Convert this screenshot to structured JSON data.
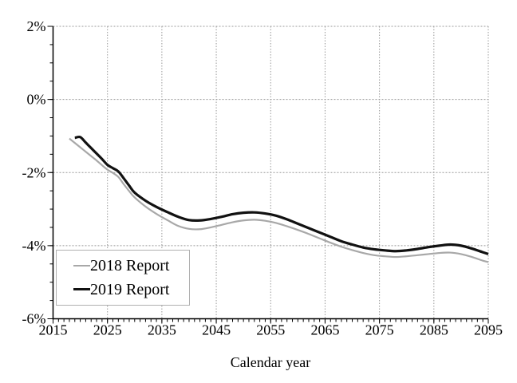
{
  "colors": {
    "background": "#ffffff",
    "axis": "#000000",
    "grid": "#999999",
    "text": "#000000",
    "legend_border": "#b0b0b0"
  },
  "chart_data": {
    "type": "line",
    "title": "",
    "xlabel": "Calendar year",
    "ylabel": "",
    "x_range": [
      2015,
      2095
    ],
    "y_range": [
      -6,
      2
    ],
    "x_major_ticks": [
      2015,
      2025,
      2035,
      2045,
      2055,
      2065,
      2075,
      2085,
      2095
    ],
    "x_tick_labels": [
      "2015",
      "2025",
      "2035",
      "2045",
      "2055",
      "2065",
      "2075",
      "2085",
      "2095"
    ],
    "x_minor_tick_step": 1,
    "y_major_ticks": [
      2,
      0,
      -2,
      -4,
      -6
    ],
    "y_tick_labels": [
      "2%",
      "0%",
      "-2%",
      "-4%",
      "-6%"
    ],
    "y_minor_tick_step": 0.5,
    "grid": {
      "style": "dotted",
      "x_lines": [
        2025,
        2035,
        2045,
        2055,
        2065,
        2075,
        2085,
        2095
      ],
      "y_lines": [
        2,
        0,
        -2,
        -4
      ]
    },
    "legend_position": "lower-left",
    "series": [
      {
        "name": "2018 Report",
        "color": "#a8a8a8",
        "width": 2.2,
        "points": [
          [
            2018,
            -1.07
          ],
          [
            2019,
            -1.19
          ],
          [
            2020,
            -1.31
          ],
          [
            2021,
            -1.43
          ],
          [
            2022,
            -1.55
          ],
          [
            2023,
            -1.67
          ],
          [
            2024,
            -1.8
          ],
          [
            2025,
            -1.92
          ],
          [
            2026,
            -2.01
          ],
          [
            2027,
            -2.12
          ],
          [
            2028,
            -2.32
          ],
          [
            2029,
            -2.51
          ],
          [
            2030,
            -2.68
          ],
          [
            2032,
            -2.93
          ],
          [
            2034,
            -3.13
          ],
          [
            2036,
            -3.3
          ],
          [
            2038,
            -3.46
          ],
          [
            2040,
            -3.54
          ],
          [
            2042,
            -3.55
          ],
          [
            2044,
            -3.5
          ],
          [
            2046,
            -3.43
          ],
          [
            2048,
            -3.36
          ],
          [
            2050,
            -3.31
          ],
          [
            2052,
            -3.29
          ],
          [
            2054,
            -3.32
          ],
          [
            2056,
            -3.38
          ],
          [
            2058,
            -3.47
          ],
          [
            2060,
            -3.57
          ],
          [
            2062,
            -3.68
          ],
          [
            2064,
            -3.8
          ],
          [
            2066,
            -3.92
          ],
          [
            2068,
            -4.03
          ],
          [
            2070,
            -4.12
          ],
          [
            2072,
            -4.2
          ],
          [
            2074,
            -4.26
          ],
          [
            2076,
            -4.29
          ],
          [
            2078,
            -4.31
          ],
          [
            2080,
            -4.29
          ],
          [
            2082,
            -4.26
          ],
          [
            2084,
            -4.23
          ],
          [
            2086,
            -4.2
          ],
          [
            2088,
            -4.19
          ],
          [
            2090,
            -4.23
          ],
          [
            2092,
            -4.31
          ],
          [
            2094,
            -4.41
          ],
          [
            2095,
            -4.45
          ]
        ]
      },
      {
        "name": "2019 Report",
        "color": "#111111",
        "width": 3.2,
        "points": [
          [
            2019,
            -1.05
          ],
          [
            2020,
            -1.03
          ],
          [
            2021,
            -1.18
          ],
          [
            2022,
            -1.33
          ],
          [
            2023,
            -1.48
          ],
          [
            2024,
            -1.63
          ],
          [
            2025,
            -1.79
          ],
          [
            2026,
            -1.88
          ],
          [
            2027,
            -1.97
          ],
          [
            2028,
            -2.16
          ],
          [
            2029,
            -2.36
          ],
          [
            2030,
            -2.55
          ],
          [
            2032,
            -2.77
          ],
          [
            2034,
            -2.94
          ],
          [
            2036,
            -3.08
          ],
          [
            2038,
            -3.21
          ],
          [
            2040,
            -3.3
          ],
          [
            2042,
            -3.31
          ],
          [
            2044,
            -3.27
          ],
          [
            2046,
            -3.21
          ],
          [
            2048,
            -3.14
          ],
          [
            2050,
            -3.1
          ],
          [
            2052,
            -3.09
          ],
          [
            2054,
            -3.12
          ],
          [
            2056,
            -3.18
          ],
          [
            2058,
            -3.28
          ],
          [
            2060,
            -3.4
          ],
          [
            2062,
            -3.52
          ],
          [
            2064,
            -3.64
          ],
          [
            2066,
            -3.76
          ],
          [
            2068,
            -3.88
          ],
          [
            2070,
            -3.97
          ],
          [
            2072,
            -4.05
          ],
          [
            2074,
            -4.1
          ],
          [
            2076,
            -4.13
          ],
          [
            2078,
            -4.15
          ],
          [
            2080,
            -4.13
          ],
          [
            2082,
            -4.09
          ],
          [
            2084,
            -4.04
          ],
          [
            2086,
            -4.0
          ],
          [
            2088,
            -3.97
          ],
          [
            2090,
            -4.0
          ],
          [
            2092,
            -4.08
          ],
          [
            2094,
            -4.18
          ],
          [
            2095,
            -4.23
          ]
        ]
      }
    ]
  }
}
